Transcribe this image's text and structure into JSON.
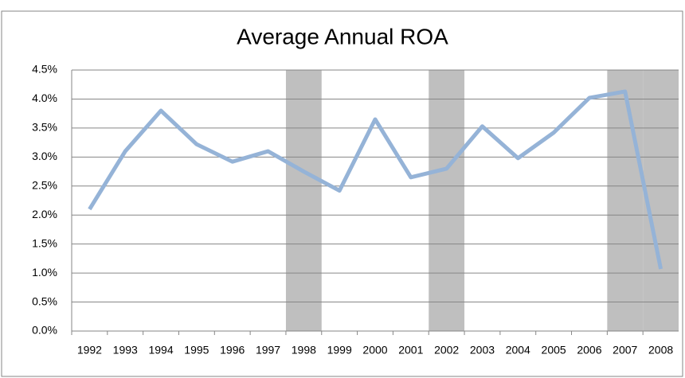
{
  "chart_data": {
    "type": "line",
    "title": "Average Annual ROA",
    "categories": [
      "1992",
      "1993",
      "1994",
      "1995",
      "1996",
      "1997",
      "1998",
      "1999",
      "2000",
      "2001",
      "2002",
      "2003",
      "2004",
      "2005",
      "2006",
      "2007",
      "2008"
    ],
    "series": [
      {
        "color": "#95b3d7",
        "values": [
          2.1,
          3.1,
          3.8,
          3.22,
          2.92,
          3.1,
          2.75,
          2.42,
          3.65,
          2.65,
          2.8,
          3.53,
          2.98,
          3.42,
          4.02,
          4.13,
          1.07
        ]
      }
    ],
    "shaded": [
      6,
      10,
      15,
      16
    ],
    "shade_color": "#bfbfbf",
    "ylim": [
      0,
      4.5
    ],
    "yticks": [
      {
        "value": 0,
        "label": "0.0%"
      },
      {
        "value": 0.5,
        "label": "0.5%"
      },
      {
        "value": 1,
        "label": "1.0%"
      },
      {
        "value": 1.5,
        "label": "1.5%"
      },
      {
        "value": 2,
        "label": "2.0%"
      },
      {
        "value": 2.5,
        "label": "2.5%"
      },
      {
        "value": 3,
        "label": "3.0%"
      },
      {
        "value": 3.5,
        "label": "3.5%"
      },
      {
        "value": 4,
        "label": "4.0%"
      },
      {
        "value": 4.5,
        "label": "4.5%"
      }
    ],
    "grid": true
  }
}
